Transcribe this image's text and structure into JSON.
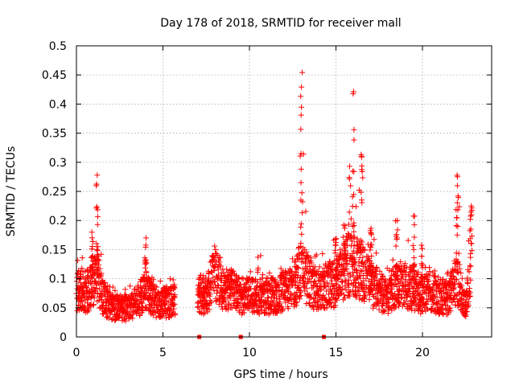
{
  "chart_data": {
    "type": "scatter",
    "title": "Day 178 of 2018, SRMTID for receiver mall",
    "xlabel": "GPS time / hours",
    "ylabel": "SRMTID / TECUs",
    "xlim": [
      0,
      24
    ],
    "ylim": [
      0,
      0.5
    ],
    "grid": true,
    "marker": "+",
    "color": "#ff0000",
    "x_ticks": [
      0,
      5,
      10,
      15,
      20
    ],
    "x_tick_labels": [
      "0",
      "5",
      "10",
      "15",
      "20"
    ],
    "y_ticks": [
      0,
      0.05,
      0.1,
      0.15,
      0.2,
      0.25,
      0.3,
      0.35,
      0.4,
      0.45,
      0.5
    ],
    "y_tick_labels": [
      "0",
      "0.05",
      "0.1",
      "0.15",
      "0.2",
      "0.25",
      "0.3",
      "0.35",
      "0.4",
      "0.45",
      "0.5"
    ],
    "data_gaps_hours": [
      [
        5.7,
        7.0
      ]
    ],
    "profile_hours": [
      0,
      0.3,
      0.6,
      0.9,
      1.2,
      1.5,
      2.0,
      2.5,
      3.0,
      3.5,
      4.0,
      4.5,
      5.0,
      5.5,
      7.0,
      7.5,
      8.0,
      8.5,
      9.0,
      9.5,
      10.0,
      10.5,
      11.0,
      11.5,
      12.0,
      12.5,
      13.0,
      13.5,
      14.0,
      14.5,
      15.0,
      15.5,
      16.0,
      16.5,
      17.0,
      17.5,
      18.0,
      18.5,
      19.0,
      19.5,
      20.0,
      20.5,
      21.0,
      21.5,
      22.0,
      22.5,
      22.8
    ],
    "typical_values": [
      0.08,
      0.08,
      0.07,
      0.09,
      0.11,
      0.07,
      0.05,
      0.05,
      0.05,
      0.06,
      0.08,
      0.06,
      0.06,
      0.06,
      0.07,
      0.07,
      0.11,
      0.08,
      0.08,
      0.07,
      0.07,
      0.07,
      0.07,
      0.07,
      0.08,
      0.08,
      0.12,
      0.09,
      0.08,
      0.09,
      0.09,
      0.12,
      0.13,
      0.11,
      0.09,
      0.08,
      0.07,
      0.09,
      0.09,
      0.08,
      0.07,
      0.08,
      0.07,
      0.07,
      0.1,
      0.05,
      0.12
    ],
    "peak_values": [
      0.13,
      0.15,
      0.12,
      0.19,
      0.28,
      0.13,
      0.09,
      0.08,
      0.09,
      0.09,
      0.17,
      0.1,
      0.1,
      0.1,
      0.1,
      0.12,
      0.16,
      0.13,
      0.12,
      0.11,
      0.12,
      0.15,
      0.13,
      0.12,
      0.13,
      0.15,
      0.46,
      0.15,
      0.14,
      0.15,
      0.18,
      0.2,
      0.43,
      0.32,
      0.19,
      0.15,
      0.12,
      0.21,
      0.16,
      0.22,
      0.16,
      0.15,
      0.12,
      0.13,
      0.28,
      0.1,
      0.23
    ],
    "zero_points_hours": [
      7.1,
      9.5,
      14.3
    ]
  }
}
